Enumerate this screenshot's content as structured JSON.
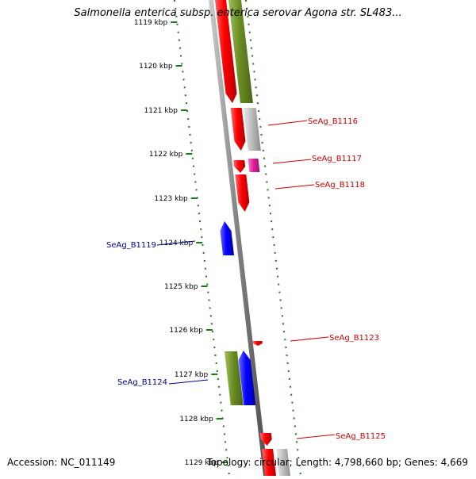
{
  "title": "Salmonella enterica subsp. enterica serovar Agona str. SL483...",
  "footer": {
    "accession": "Accession: NC_011149",
    "topology": "Topology: circular; Length: 4,798,660 bp; Genes: 4,669"
  },
  "colors": {
    "backbone": "#808080",
    "tick": "#1a7a1a",
    "red": "#ff0000",
    "olive": "#6b8e23",
    "grey": "#c0c0c0",
    "magenta": "#e0209a",
    "blue": "#0000ff",
    "label_red": "#cc0000",
    "label_blue": "#00008b"
  },
  "ticks": [
    {
      "label": "1119 kbp"
    },
    {
      "label": "1120 kbp"
    },
    {
      "label": "1121 kbp"
    },
    {
      "label": "1122 kbp"
    },
    {
      "label": "1123 kbp"
    },
    {
      "label": "1124 kbp"
    },
    {
      "label": "1125 kbp"
    },
    {
      "label": "1126 kbp"
    },
    {
      "label": "1127 kbp"
    },
    {
      "label": "1128 kbp"
    },
    {
      "label": "1129 kbp"
    }
  ],
  "gene_labels": [
    {
      "text": "SeAg_B1116",
      "strand": "forward"
    },
    {
      "text": "SeAg_B1117",
      "strand": "forward"
    },
    {
      "text": "SeAg_B1118",
      "strand": "forward"
    },
    {
      "text": "SeAg_B1119",
      "strand": "reverse"
    },
    {
      "text": "SeAg_B1123",
      "strand": "forward"
    },
    {
      "text": "SeAg_B1124",
      "strand": "reverse"
    },
    {
      "text": "SeAg_B1125",
      "strand": "forward"
    }
  ]
}
